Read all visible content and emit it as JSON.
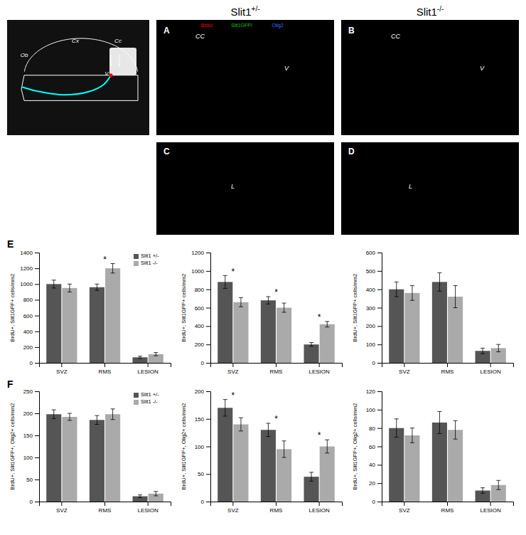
{
  "annotations": [
    {
      "text": "Slit1+/-"
    },
    {
      "text": "Slit1-/-"
    },
    {
      "text": "Cx"
    },
    {
      "text": "Cc"
    },
    {
      "text": "Ob"
    },
    {
      "text": "V"
    },
    {
      "text": "A"
    },
    {
      "text": "CC"
    },
    {
      "text": "V"
    },
    {
      "text": "Brdu/",
      "color": "red"
    },
    {
      "text": "Slit1GFP/",
      "color": "#00cc00"
    },
    {
      "text": "Olig2",
      "color": "#4466ff"
    },
    {
      "text": "B"
    },
    {
      "text": "CC"
    },
    {
      "text": "V"
    },
    {
      "text": "C"
    },
    {
      "text": "L"
    },
    {
      "text": "D"
    },
    {
      "text": "L"
    },
    {
      "text": "E"
    },
    {
      "text": "F"
    }
  ],
  "chart_data": [
    {
      "type": "bar",
      "categories": [
        "SVZ",
        "RMS",
        "LESION"
      ],
      "ylabel": "BrdU+, Slit1GFP+ cells/mm2",
      "ylim": [
        0,
        1400
      ],
      "yticks": [
        0,
        200,
        400,
        600,
        800,
        1000,
        1200,
        1400
      ],
      "series": [
        {
          "name": "Slit1 +/-",
          "color": "#555555",
          "values": [
            1000,
            960,
            70
          ],
          "errors": [
            50,
            40,
            15
          ]
        },
        {
          "name": "Slit1 -/-",
          "color": "#aaaaaa",
          "values": [
            950,
            1200,
            110
          ],
          "errors": [
            50,
            60,
            20
          ]
        }
      ],
      "annotations": [
        {
          "text": "*",
          "x": "RMS"
        }
      ],
      "legend": "upper right"
    },
    {
      "type": "bar",
      "categories": [
        "SVZ",
        "RMS",
        "LESION"
      ],
      "ylabel": "BrdU+, Slit1GFP+ cells/mm2",
      "ylim": [
        0,
        1200
      ],
      "yticks": [
        0,
        200,
        400,
        600,
        800,
        1000,
        1200
      ],
      "series": [
        {
          "color": "#555555",
          "values": [
            880,
            680,
            200
          ],
          "errors": [
            70,
            40,
            20
          ]
        },
        {
          "color": "#aaaaaa",
          "values": [
            660,
            600,
            420
          ],
          "errors": [
            50,
            50,
            30
          ]
        }
      ],
      "annotations": [
        {
          "text": "*",
          "x": "SVZ"
        },
        {
          "text": "*",
          "x": "RMS"
        },
        {
          "text": "*",
          "x": "LESION"
        }
      ]
    },
    {
      "type": "bar",
      "categories": [
        "SVZ",
        "RMS",
        "LESION"
      ],
      "ylabel": "BrdU+, Slit1GFP+ cells/mm2",
      "ylim": [
        0,
        600
      ],
      "yticks": [
        0,
        100,
        200,
        300,
        400,
        500,
        600
      ],
      "series": [
        {
          "color": "#555555",
          "values": [
            400,
            440,
            65
          ],
          "errors": [
            40,
            50,
            15
          ]
        },
        {
          "color": "#aaaaaa",
          "values": [
            380,
            360,
            80
          ],
          "errors": [
            40,
            60,
            20
          ]
        }
      ]
    },
    {
      "type": "bar",
      "categories": [
        "SVZ",
        "RMS",
        "LESION"
      ],
      "ylabel": "BrdU+, Slit1GFP+, Olig2+ cells/mm2",
      "ylim": [
        0,
        250
      ],
      "yticks": [
        0,
        50,
        100,
        150,
        200,
        250
      ],
      "series": [
        {
          "name": "Slit1 +/-",
          "color": "#555555",
          "values": [
            198,
            185,
            12
          ],
          "errors": [
            10,
            10,
            3
          ]
        },
        {
          "name": "Slit1 -/-",
          "color": "#aaaaaa",
          "values": [
            192,
            198,
            18
          ],
          "errors": [
            8,
            12,
            5
          ]
        }
      ],
      "legend": "upper right"
    },
    {
      "type": "bar",
      "categories": [
        "SVZ",
        "RMS",
        "LESION"
      ],
      "ylabel": "BrdU+, Slit1GFP+, Olig2+ cells/mm2",
      "ylim": [
        0,
        200
      ],
      "yticks": [
        0,
        50,
        100,
        150,
        200
      ],
      "series": [
        {
          "color": "#555555",
          "values": [
            170,
            130,
            45
          ],
          "errors": [
            15,
            12,
            8
          ]
        },
        {
          "color": "#aaaaaa",
          "values": [
            140,
            95,
            100
          ],
          "errors": [
            12,
            15,
            12
          ]
        }
      ],
      "annotations": [
        {
          "text": "*",
          "x": "SVZ"
        },
        {
          "text": "*",
          "x": "RMS"
        },
        {
          "text": "*",
          "x": "LESION"
        }
      ]
    },
    {
      "type": "bar",
      "categories": [
        "SVZ",
        "RMS",
        "LESION"
      ],
      "ylabel": "BrdU+, Slit1GFP+, Olig2+ cells/mm2",
      "ylim": [
        0,
        120
      ],
      "yticks": [
        0,
        20,
        40,
        60,
        80,
        100,
        120
      ],
      "series": [
        {
          "color": "#555555",
          "values": [
            80,
            86,
            12
          ],
          "errors": [
            10,
            12,
            3
          ]
        },
        {
          "color": "#aaaaaa",
          "values": [
            72,
            78,
            18
          ],
          "errors": [
            8,
            10,
            5
          ]
        }
      ]
    }
  ]
}
